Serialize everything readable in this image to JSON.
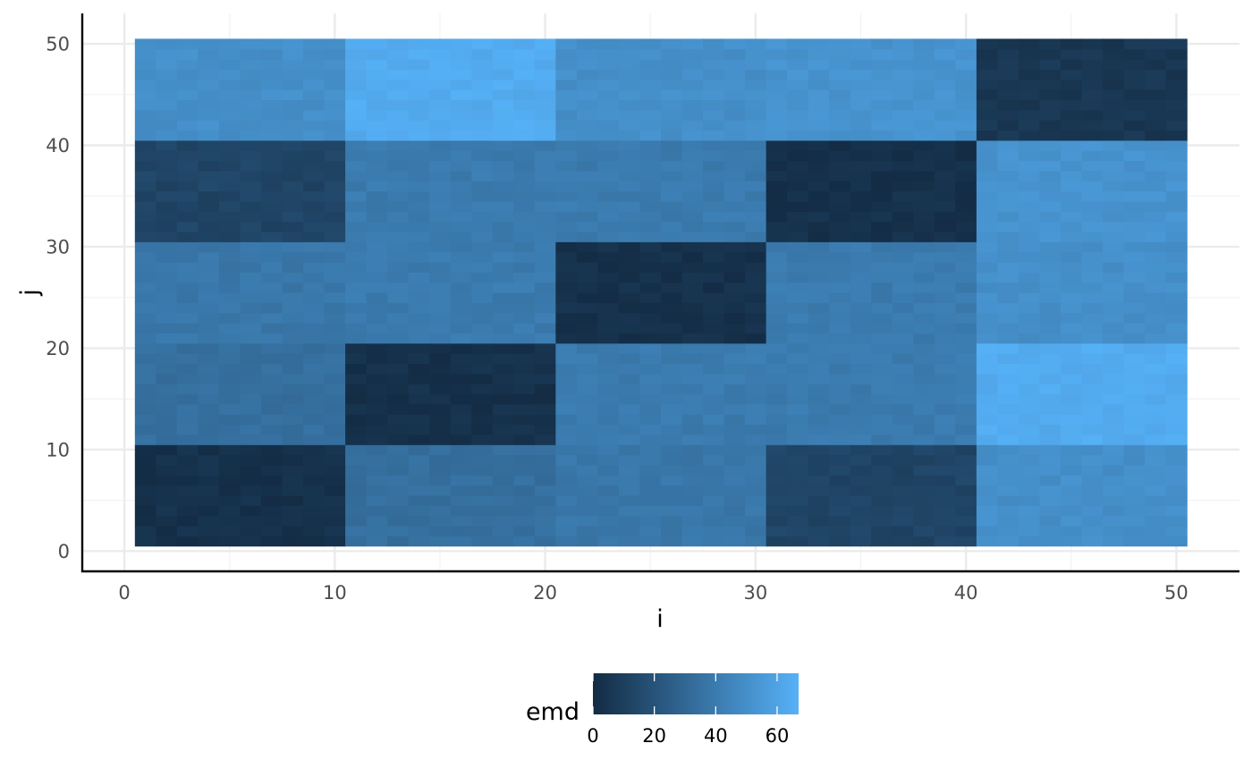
{
  "chart_data": {
    "type": "heatmap",
    "xlabel": "i",
    "ylabel": "j",
    "x_range": [
      1,
      50
    ],
    "y_range": [
      1,
      50
    ],
    "xlim": [
      -2,
      53
    ],
    "ylim": [
      -2,
      53
    ],
    "x_ticks": [
      0,
      10,
      20,
      30,
      40,
      50
    ],
    "y_ticks": [
      0,
      10,
      20,
      30,
      40,
      50
    ],
    "grid": true,
    "legend": {
      "title": "emd",
      "position": "bottom",
      "ticks": [
        0,
        20,
        40,
        60
      ],
      "range": [
        0,
        67
      ],
      "color_low": "#132B43",
      "color_high": "#56B1F7"
    },
    "block_size": 10,
    "x_blocks": [
      "1-10",
      "11-20",
      "21-30",
      "31-40",
      "41-50"
    ],
    "y_blocks": [
      "1-10",
      "11-20",
      "21-30",
      "31-40",
      "41-50"
    ],
    "block_values": [
      [
        3,
        34,
        38,
        13,
        50
      ],
      [
        34,
        3,
        40,
        40,
        64
      ],
      [
        38,
        40,
        3,
        40,
        50
      ],
      [
        13,
        40,
        40,
        3,
        52
      ],
      [
        50,
        64,
        50,
        52,
        6
      ]
    ],
    "variation": 2.5
  }
}
